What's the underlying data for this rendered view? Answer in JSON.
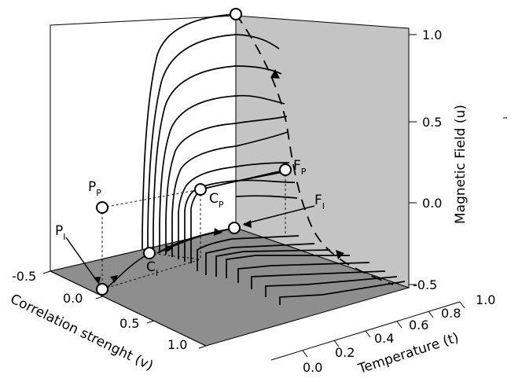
{
  "axes": {
    "u_label": "Magnetic Field (u)",
    "t_label": "Temperature (t)",
    "v_label": "Correlation strenght (v)",
    "u_ticks": [
      "1.0",
      "0.5",
      "0.0",
      "-0.5"
    ],
    "t_ticks": [
      "0.0",
      "0.2",
      "0.4",
      "0.6",
      "0.8",
      "1.0"
    ],
    "v_ticks": [
      "-0.5",
      "0.0",
      "0.5",
      "1.0"
    ]
  },
  "points": [
    {
      "main": "P",
      "sub": "P"
    },
    {
      "main": "P",
      "sub": "I"
    },
    {
      "main": "C",
      "sub": "P"
    },
    {
      "main": "C",
      "sub": "I"
    },
    {
      "main": "F",
      "sub": "P"
    },
    {
      "main": "F",
      "sub": "I"
    }
  ],
  "colors": {
    "back_wall": "#c4c4c4",
    "floor": "#8e8e8e",
    "line": "#000000",
    "marker_fill": "#ffffff"
  }
}
